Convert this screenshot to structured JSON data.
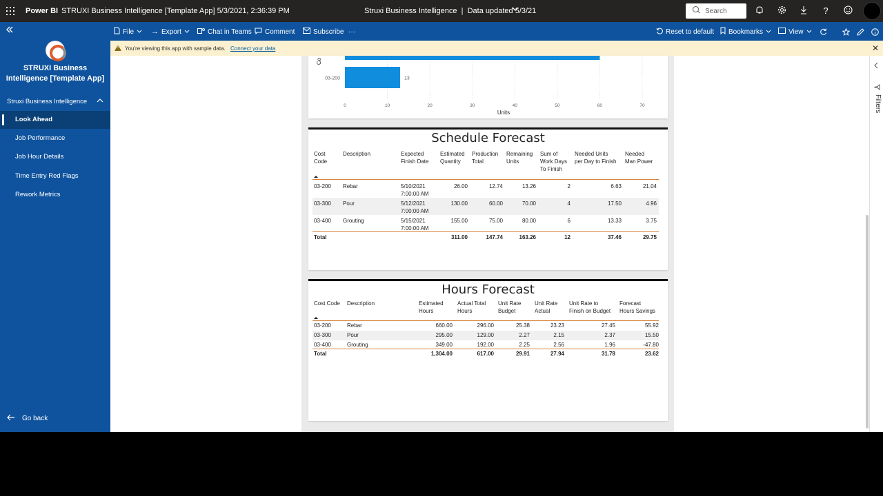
{
  "header": {
    "brand": "Power BI",
    "report_title": "STRUXI Business Intelligence [Template App] 5/3/2021, 2:36:39 PM",
    "center_title": "Struxi Business Intelligence  |  Data updated 5/3/21",
    "search_placeholder": "Search"
  },
  "actions": {
    "file": "File",
    "export": "Export",
    "chat_in_teams": "Chat in Teams",
    "comment": "Comment",
    "subscribe": "Subscribe",
    "more": "···",
    "reset": "Reset to default",
    "bookmarks": "Bookmarks",
    "view": "View"
  },
  "notice": {
    "message": "You're viewing this app with sample data.",
    "link": "Connect your data"
  },
  "nav": {
    "app_name_line1": "STRUXI Business",
    "app_name_line2": "Intelligence [Template App]",
    "section": "Struxi Business Intelligence",
    "items": [
      {
        "label": "Look Ahead",
        "active": true
      },
      {
        "label": "Job Performance",
        "active": false
      },
      {
        "label": "Job Hour Details",
        "active": false
      },
      {
        "label": "Time Entry Red Flags",
        "active": false
      },
      {
        "label": "Rework Metrics",
        "active": false
      }
    ],
    "go_back": "Go back"
  },
  "right_pane": {
    "filters": "Filters"
  },
  "chart_data": {
    "type": "bar",
    "orientation": "horizontal",
    "ylabel_partial": "Co",
    "xlabel": "Units",
    "categories": [
      "",
      "03-200"
    ],
    "values": [
      60,
      13
    ],
    "data_labels": [
      "",
      "13"
    ],
    "xlim": [
      0,
      70
    ],
    "xticks": [
      "0",
      "10",
      "20",
      "30",
      "40",
      "50",
      "60",
      "70"
    ]
  },
  "schedule": {
    "title": "Schedule Forecast",
    "headers": [
      "Cost\nCode",
      "Description",
      "Expected\nFinish Date",
      "Estimated\nQuantity",
      "Production\nTotal",
      "Remaining\nUnits",
      "Sum of\nWork Days\nTo Finish",
      "Needed Units\nper Day to Finish",
      "Needed\nMan Power"
    ],
    "rows": [
      [
        "03-200",
        "Rebar",
        "5/10/2021\n7:00:00 AM",
        "26.00",
        "12.74",
        "13.26",
        "2",
        "6.63",
        "21.04"
      ],
      [
        "03-300",
        "Pour",
        "5/12/2021\n7:00:00 AM",
        "130.00",
        "60.00",
        "70.00",
        "4",
        "17.50",
        "4.96"
      ],
      [
        "03-400",
        "Grouting",
        "5/15/2021\n7:00:00 AM",
        "155.00",
        "75.00",
        "80.00",
        "6",
        "13.33",
        "3.75"
      ]
    ],
    "total": [
      "Total",
      "",
      "",
      "311.00",
      "147.74",
      "163.26",
      "12",
      "37.46",
      "29.75"
    ]
  },
  "hours": {
    "title": "Hours Forecast",
    "headers": [
      "Cost Code",
      "Description",
      "Estimated\nHours",
      "Actual Total\nHours",
      "Unit Rate\nBudget",
      "Unit Rate\nActual",
      "Unit Rate to\nFinish on Budget",
      "Forecast\nHours Savings"
    ],
    "rows": [
      [
        "03-200",
        "Rebar",
        "660.00",
        "296.00",
        "25.38",
        "23.23",
        "27.45",
        "55.92"
      ],
      [
        "03-300",
        "Pour",
        "295.00",
        "129.00",
        "2.27",
        "2.15",
        "2.37",
        "15.50"
      ],
      [
        "03-400",
        "Grouting",
        "349.00",
        "192.00",
        "2.25",
        "2.56",
        "1.96",
        "-47.80"
      ]
    ],
    "total": [
      "Total",
      "",
      "1,304.00",
      "617.00",
      "29.91",
      "27.94",
      "31.78",
      "23.62"
    ]
  }
}
